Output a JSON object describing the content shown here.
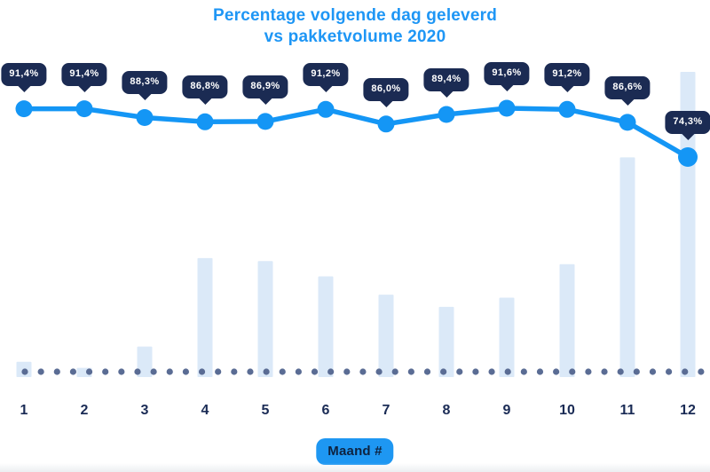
{
  "title": {
    "line1": "Percentage volgende dag geleverd",
    "line2": "vs pakketvolume 2020"
  },
  "x_axis": {
    "label_badge": "Maand #"
  },
  "colors": {
    "title_blue": "#1e96f5",
    "line_blue": "#1496f5",
    "tooltip_navy": "#1b2b53",
    "bar_fill": "#dbe9f8",
    "baseline_dot": "#5a6c94",
    "axis_label_navy": "#1a2b55",
    "badge_bg": "#1e97f2",
    "badge_text": "#0e2340"
  },
  "chart_data": {
    "type": "line",
    "subtype": "line-with-bar-volume",
    "categories": [
      "1",
      "2",
      "3",
      "4",
      "5",
      "6",
      "7",
      "8",
      "9",
      "10",
      "11",
      "12"
    ],
    "series": [
      {
        "name": "Percentage volgende dag geleverd",
        "type": "line",
        "unit": "%",
        "values": [
          91.4,
          91.4,
          88.3,
          86.8,
          86.9,
          91.2,
          86.0,
          89.4,
          91.6,
          91.2,
          86.6,
          74.3
        ],
        "labels": [
          "91,4%",
          "91,4%",
          "88,3%",
          "86,8%",
          "86,9%",
          "91,2%",
          "86,0%",
          "89,4%",
          "91,6%",
          "91,2%",
          "86,6%",
          "74,3%"
        ]
      },
      {
        "name": "Pakketvolume 2020",
        "type": "bar",
        "unit": "relative (no axis shown)",
        "values": [
          5,
          3,
          10,
          39,
          38,
          33,
          27,
          23,
          26,
          37,
          72,
          100
        ]
      }
    ],
    "title": "Percentage volgende dag geleverd vs pakketvolume 2020",
    "xlabel": "Maand #",
    "ylabel": "",
    "legend": "none",
    "grid": false,
    "baseline": "dotted"
  }
}
